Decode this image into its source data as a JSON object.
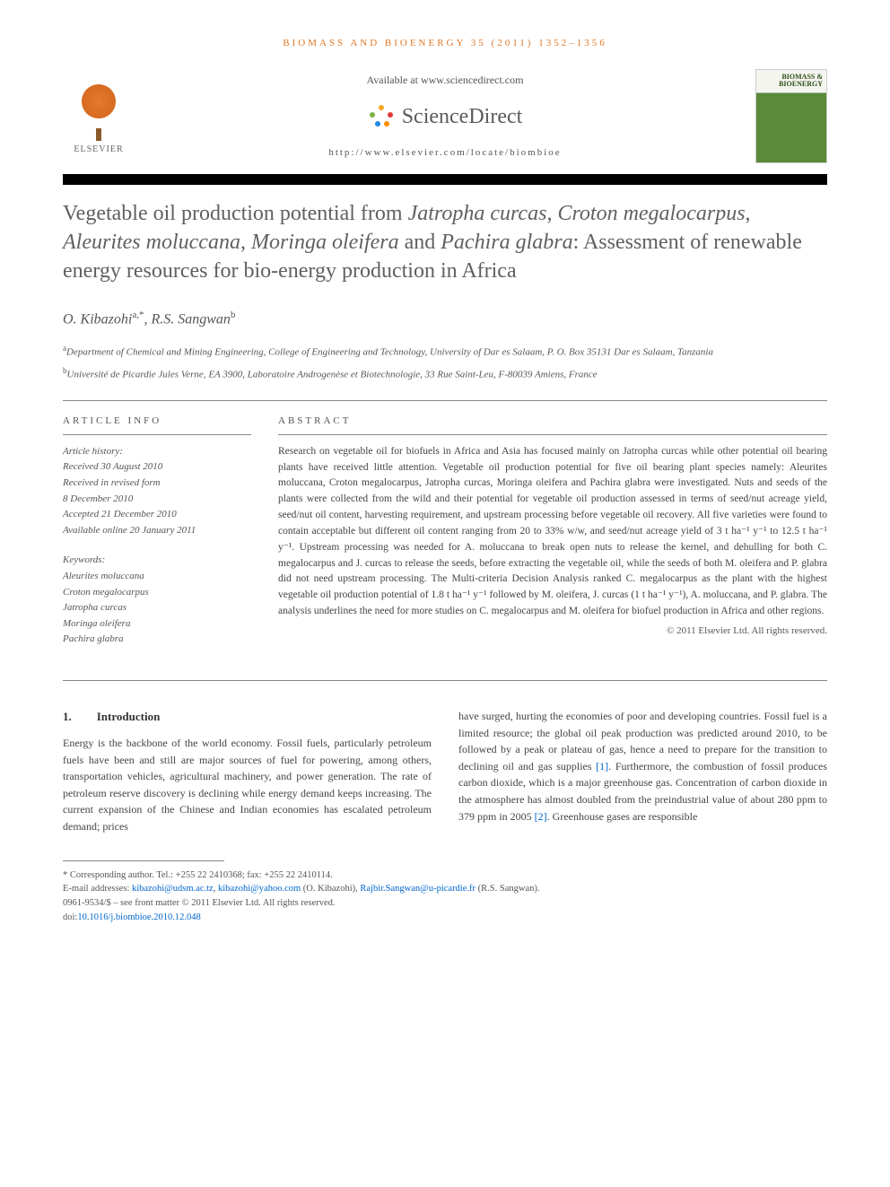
{
  "journal_header": "BIOMASS AND BIOENERGY 35 (2011) 1352–1356",
  "header": {
    "available_at": "Available at www.sciencedirect.com",
    "sciencedirect": "ScienceDirect",
    "journal_url": "http://www.elsevier.com/locate/biombioe",
    "elsevier_label": "ELSEVIER",
    "cover_title": "BIOMASS & BIOENERGY"
  },
  "title_parts": {
    "p1": "Vegetable oil production potential from ",
    "i1": "Jatropha curcas",
    "p2": ", ",
    "i2": "Croton megalocarpus",
    "p3": ", ",
    "i3": "Aleurites moluccana",
    "p4": ", ",
    "i4": "Moringa oleifera",
    "p5": " and ",
    "i5": "Pachira glabra",
    "p6": ": Assessment of renewable energy resources for bio-energy production in Africa"
  },
  "authors": {
    "a1_name": "O. Kibazohi",
    "a1_sup": "a,*",
    "sep": ", ",
    "a2_name": "R.S. Sangwan",
    "a2_sup": "b"
  },
  "affiliations": {
    "a": "Department of Chemical and Mining Engineering, College of Engineering and Technology, University of Dar es Salaam, P. O. Box 35131 Dar es Salaam, Tanzania",
    "b": "Université de Picardie Jules Verne, EA 3900, Laboratoire Androgenèse et Biotechnologie, 33 Rue Saint-Leu, F-80039 Amiens, France"
  },
  "labels": {
    "article_info": "ARTICLE INFO",
    "abstract": "ABSTRACT",
    "history": "Article history:",
    "keywords": "Keywords:"
  },
  "history": {
    "received": "Received 30 August 2010",
    "revised1": "Received in revised form",
    "revised2": "8 December 2010",
    "accepted": "Accepted 21 December 2010",
    "online": "Available online 20 January 2011"
  },
  "keywords": [
    "Aleurites moluccana",
    "Croton megalocarpus",
    "Jatropha curcas",
    "Moringa oleifera",
    "Pachira glabra"
  ],
  "abstract": "Research on vegetable oil for biofuels in Africa and Asia has focused mainly on Jatropha curcas while other potential oil bearing plants have received little attention. Vegetable oil production potential for five oil bearing plant species namely: Aleurites moluccana, Croton megalocarpus, Jatropha curcas, Moringa oleifera and Pachira glabra were investigated. Nuts and seeds of the plants were collected from the wild and their potential for vegetable oil production assessed in terms of seed/nut acreage yield, seed/nut oil content, harvesting requirement, and upstream processing before vegetable oil recovery. All five varieties were found to contain acceptable but different oil content ranging from 20 to 33% w/w, and seed/nut acreage yield of 3 t ha⁻¹ y⁻¹ to 12.5 t ha⁻¹ y⁻¹. Upstream processing was needed for A. moluccana to break open nuts to release the kernel, and dehulling for both C. megalocarpus and J. curcas to release the seeds, before extracting the vegetable oil, while the seeds of both M. oleifera and P. glabra did not need upstream processing. The Multi-criteria Decision Analysis ranked C. megalocarpus as the plant with the highest vegetable oil production potential of 1.8 t ha⁻¹ y⁻¹ followed by M. oleifera, J. curcas (1 t ha⁻¹ y⁻¹), A. moluccana, and P. glabra. The analysis underlines the need for more studies on C. megalocarpus and M. oleifera for biofuel production in Africa and other regions.",
  "copyright": "© 2011 Elsevier Ltd. All rights reserved.",
  "section1": {
    "num": "1.",
    "title": "Introduction"
  },
  "body": {
    "col1": "Energy is the backbone of the world economy. Fossil fuels, particularly petroleum fuels have been and still are major sources of fuel for powering, among others, transportation vehicles, agricultural machinery, and power generation. The rate of petroleum reserve discovery is declining while energy demand keeps increasing. The current expansion of the Chinese and Indian economies has escalated petroleum demand; prices",
    "col2a": "have surged, hurting the economies of poor and developing countries. Fossil fuel is a limited resource; the global oil peak production was predicted around 2010, to be followed by a peak or plateau of gas, hence a need to prepare for the transition to declining oil and gas supplies ",
    "ref1": "[1]",
    "col2b": ". Furthermore, the combustion of fossil produces carbon dioxide, which is a major greenhouse gas. Concentration of carbon dioxide in the atmosphere has almost doubled from the preindustrial value of about 280 ppm to 379 ppm in 2005 ",
    "ref2": "[2]",
    "col2c": ". Greenhouse gases are responsible"
  },
  "footnotes": {
    "corresponding": "* Corresponding author. Tel.: +255 22 2410368; fax: +255 22 2410114.",
    "email_label": "E-mail addresses: ",
    "email1": "kibazohi@udsm.ac.tz",
    "email_sep1": ", ",
    "email2": "kibazohi@yahoo.com",
    "email_auth1": " (O. Kibazohi), ",
    "email3": "Rajbir.Sangwan@u-picardie.fr",
    "email_auth2": " (R.S. Sangwan).",
    "issn": "0961-9534/$ – see front matter © 2011 Elsevier Ltd. All rights reserved.",
    "doi_label": "doi:",
    "doi": "10.1016/j.biombioe.2010.12.048"
  },
  "colors": {
    "accent": "#df7727",
    "link": "#0066cc",
    "text": "#444444",
    "muted": "#555555"
  }
}
